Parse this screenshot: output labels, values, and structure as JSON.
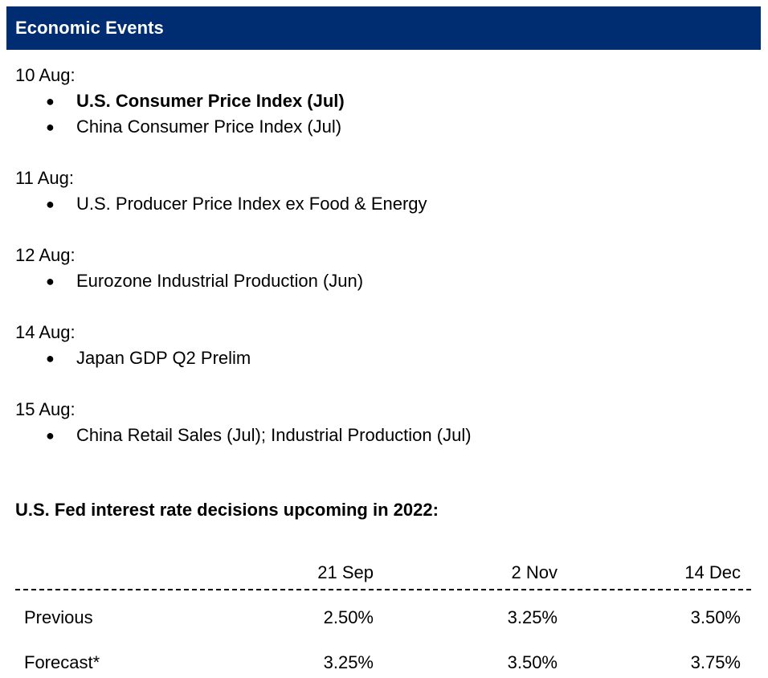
{
  "header": {
    "title": "Economic Events"
  },
  "events": [
    {
      "date": "10 Aug:",
      "items": [
        {
          "text": "U.S. Consumer Price Index (Jul)",
          "bold": true
        },
        {
          "text": "China Consumer Price Index (Jul)",
          "bold": false
        }
      ]
    },
    {
      "date": "11 Aug:",
      "items": [
        {
          "text": "U.S. Producer Price Index ex Food & Energy",
          "bold": false
        }
      ]
    },
    {
      "date": "12 Aug:",
      "items": [
        {
          "text": "Eurozone Industrial Production (Jun)",
          "bold": false
        }
      ]
    },
    {
      "date": "14 Aug:",
      "items": [
        {
          "text": "Japan GDP Q2 Prelim",
          "bold": false
        }
      ]
    },
    {
      "date": "15 Aug:",
      "items": [
        {
          "text": "China Retail Sales (Jul); Industrial Production (Jul)",
          "bold": false
        }
      ]
    }
  ],
  "bullet_glyph": "●",
  "fed": {
    "title": "U.S. Fed interest rate decisions upcoming in 2022:",
    "columns": [
      "21 Sep",
      "2 Nov",
      "14 Dec"
    ],
    "rows": [
      {
        "label": "Previous",
        "values": [
          "2.50%",
          "3.25%",
          "3.50%"
        ]
      },
      {
        "label": "Forecast*",
        "values": [
          "3.25%",
          "3.50%",
          "3.75%"
        ]
      }
    ]
  },
  "colors": {
    "header_bg": "#002d72",
    "header_text": "#ffffff"
  }
}
